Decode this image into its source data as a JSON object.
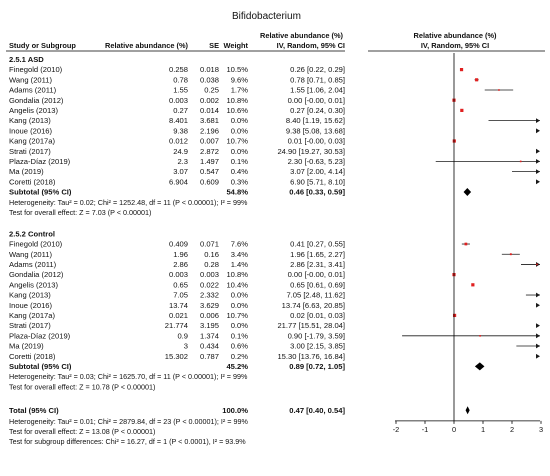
{
  "chart_data": {
    "type": "forest",
    "title": "Bifidobacterium",
    "header": {
      "study": "Study or Subgroup",
      "mean": "Relative abundance (%)",
      "se": "SE",
      "weight": "Weight",
      "effect_top": "Relative abundance (%)",
      "effect_sub": "IV, Random, 95% CI",
      "plot_top": "Relative abundance (%)",
      "plot_sub": "IV, Random, 95% CI"
    },
    "xaxis": {
      "min": -2,
      "max": 3,
      "ticks": [
        -2,
        -1,
        0,
        1,
        2,
        3
      ]
    },
    "subgroups": [
      {
        "title": "2.5.1 ASD",
        "rows": [
          {
            "study": "Finegold (2010)",
            "mean": "0.258",
            "se": "0.018",
            "weight": "10.5%",
            "ci": "0.26 [0.22, 0.29]",
            "est": 0.26,
            "lo": 0.22,
            "hi": 0.29
          },
          {
            "study": "Wang (2011)",
            "mean": "0.78",
            "se": "0.038",
            "weight": "9.6%",
            "ci": "0.78 [0.71, 0.85]",
            "est": 0.78,
            "lo": 0.71,
            "hi": 0.85
          },
          {
            "study": "Adams (2011)",
            "mean": "1.55",
            "se": "0.25",
            "weight": "1.7%",
            "ci": "1.55 [1.06, 2.04]",
            "est": 1.55,
            "lo": 1.06,
            "hi": 2.04
          },
          {
            "study": "Gondalia (2012)",
            "mean": "0.003",
            "se": "0.002",
            "weight": "10.8%",
            "ci": "0.00 [-0.00, 0.01]",
            "est": 0.0,
            "lo": -0.0,
            "hi": 0.01
          },
          {
            "study": "Angelis (2013)",
            "mean": "0.27",
            "se": "0.014",
            "weight": "10.6%",
            "ci": "0.27 [0.24, 0.30]",
            "est": 0.27,
            "lo": 0.24,
            "hi": 0.3
          },
          {
            "study": "Kang (2013)",
            "mean": "8.401",
            "se": "3.681",
            "weight": "0.0%",
            "ci": "8.40 [1.19, 15.62]",
            "est": 8.4,
            "lo": 1.19,
            "hi": 15.62
          },
          {
            "study": "Inoue (2016)",
            "mean": "9.38",
            "se": "2.196",
            "weight": "0.0%",
            "ci": "9.38 [5.08, 13.68]",
            "est": 9.38,
            "lo": 5.08,
            "hi": 13.68
          },
          {
            "study": "Kang (2017a)",
            "mean": "0.012",
            "se": "0.007",
            "weight": "10.7%",
            "ci": "0.01 [-0.00, 0.03]",
            "est": 0.01,
            "lo": -0.0,
            "hi": 0.03
          },
          {
            "study": "Strati (2017)",
            "mean": "24.9",
            "se": "2.872",
            "weight": "0.0%",
            "ci": "24.90 [19.27, 30.53]",
            "est": 24.9,
            "lo": 19.27,
            "hi": 30.53
          },
          {
            "study": "Plaza-Díaz (2019)",
            "mean": "2.3",
            "se": "1.497",
            "weight": "0.1%",
            "ci": "2.30 [-0.63, 5.23]",
            "est": 2.3,
            "lo": -0.63,
            "hi": 5.23
          },
          {
            "study": "Ma (2019)",
            "mean": "3.07",
            "se": "0.547",
            "weight": "0.4%",
            "ci": "3.07 [2.00, 4.14]",
            "est": 3.07,
            "lo": 2.0,
            "hi": 4.14
          },
          {
            "study": "Coretti (2018)",
            "mean": "6.904",
            "se": "0.609",
            "weight": "0.3%",
            "ci": "6.90 [5.71, 8.10]",
            "est": 6.9,
            "lo": 5.71,
            "hi": 8.1
          }
        ],
        "subtotal": {
          "label": "Subtotal (95% CI)",
          "weight": "54.8%",
          "ci": "0.46 [0.33, 0.59]",
          "est": 0.46,
          "lo": 0.33,
          "hi": 0.59
        },
        "heterogeneity": "Heterogeneity: Tau² = 0.02; Chi² = 1252.48, df = 11 (P < 0.00001); I² = 99%",
        "overall_effect": "Test for overall effect: Z = 7.03 (P < 0.00001)"
      },
      {
        "title": "2.5.2 Control",
        "rows": [
          {
            "study": "Finegold (2010)",
            "mean": "0.409",
            "se": "0.071",
            "weight": "7.6%",
            "ci": "0.41 [0.27, 0.55]",
            "est": 0.41,
            "lo": 0.27,
            "hi": 0.55
          },
          {
            "study": "Wang (2011)",
            "mean": "1.96",
            "se": "0.16",
            "weight": "3.4%",
            "ci": "1.96 [1.65, 2.27]",
            "est": 1.96,
            "lo": 1.65,
            "hi": 2.27
          },
          {
            "study": "Adams (2011)",
            "mean": "2.86",
            "se": "0.28",
            "weight": "1.4%",
            "ci": "2.86 [2.31, 3.41]",
            "est": 2.86,
            "lo": 2.31,
            "hi": 3.41
          },
          {
            "study": "Gondalia (2012)",
            "mean": "0.003",
            "se": "0.003",
            "weight": "10.8%",
            "ci": "0.00 [-0.00, 0.01]",
            "est": 0.0,
            "lo": -0.0,
            "hi": 0.01
          },
          {
            "study": "Angelis (2013)",
            "mean": "0.65",
            "se": "0.022",
            "weight": "10.4%",
            "ci": "0.65 [0.61, 0.69]",
            "est": 0.65,
            "lo": 0.61,
            "hi": 0.69
          },
          {
            "study": "Kang (2013)",
            "mean": "7.05",
            "se": "2.332",
            "weight": "0.0%",
            "ci": "7.05 [2.48, 11.62]",
            "est": 7.05,
            "lo": 2.48,
            "hi": 11.62
          },
          {
            "study": "Inoue (2016)",
            "mean": "13.74",
            "se": "3.629",
            "weight": "0.0%",
            "ci": "13.74 [6.63, 20.85]",
            "est": 13.74,
            "lo": 6.63,
            "hi": 20.85
          },
          {
            "study": "Kang (2017a)",
            "mean": "0.021",
            "se": "0.006",
            "weight": "10.7%",
            "ci": "0.02 [0.01, 0.03]",
            "est": 0.02,
            "lo": 0.01,
            "hi": 0.03
          },
          {
            "study": "Strati (2017)",
            "mean": "21.774",
            "se": "3.195",
            "weight": "0.0%",
            "ci": "21.77 [15.51, 28.04]",
            "est": 21.77,
            "lo": 15.51,
            "hi": 28.04
          },
          {
            "study": "Plaza-Díaz (2019)",
            "mean": "0.9",
            "se": "1.374",
            "weight": "0.1%",
            "ci": "0.90 [-1.79, 3.59]",
            "est": 0.9,
            "lo": -1.79,
            "hi": 3.59
          },
          {
            "study": "Ma (2019)",
            "mean": "3",
            "se": "0.434",
            "weight": "0.6%",
            "ci": "3.00 [2.15, 3.85]",
            "est": 3.0,
            "lo": 2.15,
            "hi": 3.85
          },
          {
            "study": "Coretti (2018)",
            "mean": "15.302",
            "se": "0.787",
            "weight": "0.2%",
            "ci": "15.30 [13.76, 16.84]",
            "est": 15.3,
            "lo": 13.76,
            "hi": 16.84
          }
        ],
        "subtotal": {
          "label": "Subtotal (95% CI)",
          "weight": "45.2%",
          "ci": "0.89 [0.72, 1.05]",
          "est": 0.89,
          "lo": 0.72,
          "hi": 1.05
        },
        "heterogeneity": "Heterogeneity: Tau² = 0.03; Chi² = 1625.70, df = 11 (P < 0.00001); I² = 99%",
        "overall_effect": "Test for overall effect: Z = 10.78 (P < 0.00001)"
      }
    ],
    "total": {
      "label": "Total (95% CI)",
      "weight": "100.0%",
      "ci": "0.47 [0.40, 0.54]",
      "est": 0.47,
      "lo": 0.4,
      "hi": 0.54
    },
    "footer": [
      "Heterogeneity: Tau² = 0.01; Chi² = 2879.84, df = 23 (P < 0.00001); I² = 99%",
      "Test for overall effect: Z = 13.08 (P < 0.00001)",
      "Test for subgroup differences: Chi² = 16.27, df = 1 (P < 0.0001), I² = 93.9%"
    ],
    "colors": {
      "point": "#e02020",
      "ci_line": "#1a1a1a",
      "diamond": "#000000",
      "text": "#111111"
    }
  }
}
